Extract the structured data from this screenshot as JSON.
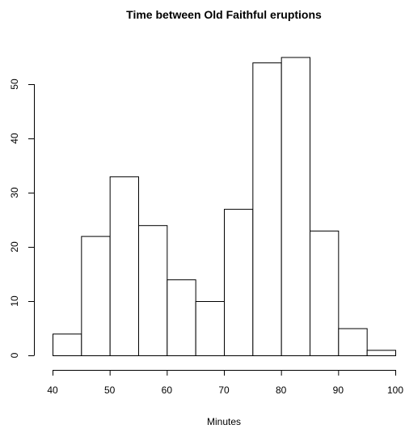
{
  "chart_data": {
    "type": "bar",
    "title": "Time between Old Faithful eruptions",
    "xlabel": "Minutes",
    "ylabel": "",
    "bins": [
      [
        40,
        45
      ],
      [
        45,
        50
      ],
      [
        50,
        55
      ],
      [
        55,
        60
      ],
      [
        60,
        65
      ],
      [
        65,
        70
      ],
      [
        70,
        75
      ],
      [
        75,
        80
      ],
      [
        80,
        85
      ],
      [
        85,
        90
      ],
      [
        90,
        95
      ],
      [
        95,
        100
      ]
    ],
    "values": [
      4,
      22,
      33,
      24,
      14,
      10,
      27,
      54,
      55,
      23,
      5,
      1
    ],
    "xlim": [
      40,
      100
    ],
    "ylim": [
      0,
      55
    ],
    "x_ticks": [
      "40",
      "50",
      "60",
      "70",
      "80",
      "90",
      "100"
    ],
    "y_ticks": [
      "0",
      "10",
      "20",
      "30",
      "40",
      "50"
    ],
    "grid": false
  }
}
